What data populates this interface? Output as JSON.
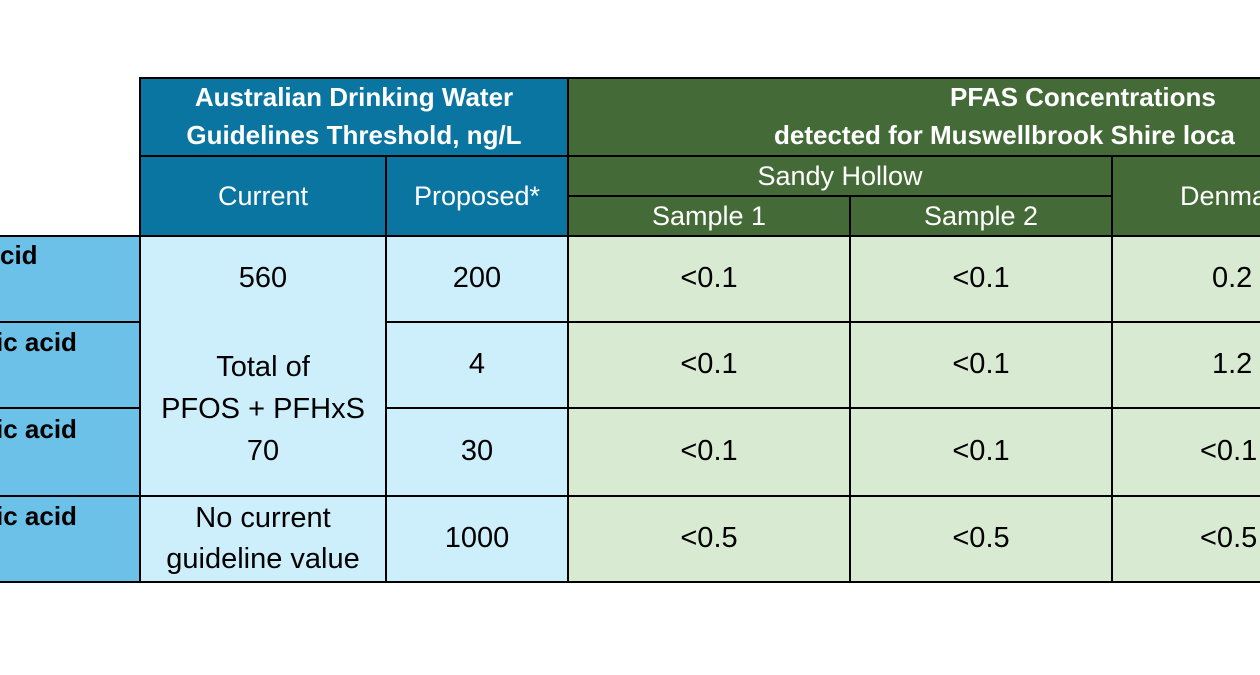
{
  "header": {
    "adwg_title": "Australian Drinking Water Guidelines Threshold, ng/L",
    "adwg_line1": "Australian Drinking Water",
    "adwg_line2": "Guidelines Threshold, ng/L",
    "pfas_line1": "PFAS Concentrations",
    "pfas_line2": "detected for Muswellbrook Shire loca",
    "current": "Current",
    "proposed": "Proposed*",
    "sandy_hollow": "Sandy Hollow",
    "sample1": "Sample 1",
    "sample2": "Sample 2",
    "denman": "Denma"
  },
  "rows": [
    {
      "label": "cid",
      "current": "560",
      "proposed": "200",
      "s1": "<0.1",
      "s2": "<0.1",
      "denman": "0.2"
    },
    {
      "label": "ic acid",
      "proposed": "4",
      "s1": "<0.1",
      "s2": "<0.1",
      "denman": "1.2"
    },
    {
      "label": "ic acid",
      "proposed": "30",
      "s1": "<0.1",
      "s2": "<0.1",
      "denman": "<0.1"
    },
    {
      "label": "ic acid",
      "current_line1": "No current",
      "current_line2": "guideline value",
      "proposed": "1000",
      "s1": "<0.5",
      "s2": "<0.5",
      "denman": "<0.5"
    }
  ],
  "merged_current": {
    "line1": "Total of",
    "line2": "PFOS + PFHxS",
    "line3": "70"
  }
}
